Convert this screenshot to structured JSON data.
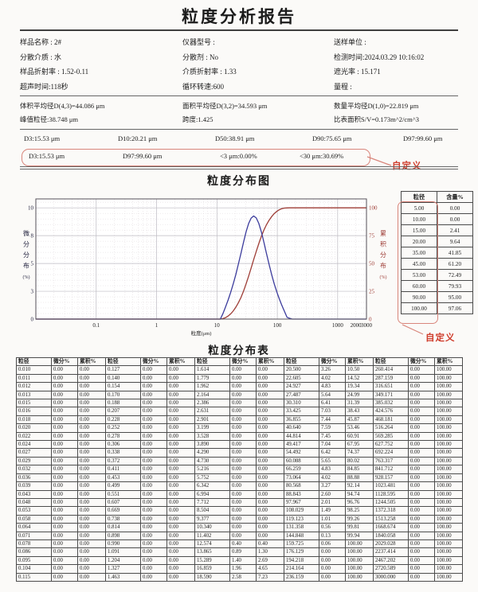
{
  "report": {
    "title": "粒度分析报告",
    "info_rows": [
      [
        "样品名称 : 2#",
        "仪器型号 :",
        "送样单位 :"
      ],
      [
        "分散介质 : 水",
        "分散剂 : No",
        "检测时间:2024.03.29 10:16:02"
      ],
      [
        "样品折射率 : 1.52-0.11",
        "介质折射率 : 1.33",
        "遮光率 : 15.171"
      ],
      [
        "超声时间:118秒",
        "循环转速:600",
        "量程 :"
      ]
    ],
    "summary_rows": [
      [
        "体积平均径D(4,3)=44.086 μm",
        "面积平均径D(3,2)=34.593 μm",
        "数量平均径D(1,0)=22.819 μm"
      ],
      [
        "峰值粒径:38.748 μm",
        "跨度:1.425",
        "比表面积S/V=0.173m^2/cm^3"
      ]
    ],
    "percentiles": [
      "D3:15.53 μm",
      "D10:20.21 μm",
      "D50:38.91 μm",
      "D90:75.65 μm",
      "D97:99.60 μm"
    ],
    "custom_row": {
      "items": [
        "D3:15.53 μm",
        "D97:99.60 μm",
        "<3 μm:0.00%",
        "<30 μm:30.69%"
      ],
      "annotation": "自定义"
    },
    "accent_color": "#cf3b2a"
  },
  "chart_data": {
    "type": "line",
    "title": "粒度分布图",
    "xlabel": "粒度(μm)",
    "ylabel_left": "微分分布(%)",
    "ylabel_right": "累积分布(%)",
    "x_scale": "log",
    "xlim": [
      0.01,
      3000
    ],
    "x_ticks": [
      0.1,
      1,
      10,
      100,
      1000,
      2000,
      3000
    ],
    "ylim_left": [
      0,
      10
    ],
    "y_ticks_left_values": [
      0,
      2.5,
      5,
      7.5,
      10
    ],
    "y_ticks_left_labels": [
      "0",
      "3",
      "5",
      "8",
      "10"
    ],
    "ylim_right": [
      0,
      100
    ],
    "y_ticks_right": [
      0,
      25,
      50,
      75,
      100
    ],
    "grid": true,
    "legend_position": "none",
    "series": [
      {
        "name": "微分分布",
        "color": "#3b3b9c",
        "axis": "left",
        "x": [
          0.01,
          10.34,
          11.402,
          12.574,
          13.865,
          15.289,
          16.859,
          18.59,
          20.5,
          22.605,
          24.927,
          27.487,
          30.31,
          33.425,
          36.855,
          40.64,
          44.814,
          49.417,
          54.492,
          60.088,
          66.259,
          73.064,
          80.568,
          88.843,
          97.967,
          108.029,
          119.123,
          131.358,
          144.848,
          159.725,
          176.129,
          3000
        ],
        "y": [
          0,
          0,
          0,
          0.4,
          0.89,
          1.4,
          1.96,
          2.58,
          3.26,
          4.02,
          4.83,
          5.64,
          6.41,
          7.03,
          7.44,
          7.59,
          7.45,
          7.04,
          6.42,
          5.65,
          4.83,
          4.02,
          3.27,
          2.6,
          2.01,
          1.49,
          1.01,
          0.56,
          0.13,
          0.06,
          0,
          0
        ]
      },
      {
        "name": "累积分布",
        "color": "#9e3d36",
        "axis": "right",
        "x": [
          0.01,
          11.402,
          12.574,
          13.865,
          15.289,
          16.859,
          18.59,
          20.5,
          22.605,
          24.927,
          27.487,
          30.31,
          33.425,
          36.855,
          40.64,
          44.814,
          49.417,
          54.492,
          60.088,
          66.259,
          73.064,
          80.568,
          88.843,
          97.967,
          108.029,
          119.123,
          131.358,
          144.848,
          159.725,
          3000
        ],
        "y": [
          0,
          0,
          0.4,
          1.3,
          2.69,
          4.65,
          7.23,
          10.5,
          14.52,
          19.34,
          24.99,
          31.39,
          38.43,
          45.87,
          53.46,
          60.91,
          67.95,
          74.37,
          80.02,
          84.85,
          88.88,
          92.14,
          94.74,
          96.76,
          98.25,
          99.26,
          99.81,
          99.94,
          100.0,
          100.0
        ]
      }
    ]
  },
  "side_table": {
    "headers": [
      "粒径",
      "含量%"
    ],
    "rows": [
      [
        "5.00",
        "0.00"
      ],
      [
        "10.00",
        "0.00"
      ],
      [
        "15.00",
        "2.41"
      ],
      [
        "20.00",
        "9.64"
      ],
      [
        "35.00",
        "41.85"
      ],
      [
        "45.00",
        "61.20"
      ],
      [
        "53.00",
        "72.49"
      ],
      [
        "60.00",
        "79.93"
      ],
      [
        "90.00",
        "95.00"
      ],
      [
        "100.00",
        "97.06"
      ]
    ],
    "annotation": "自定义"
  },
  "distribution_table": {
    "title": "粒度分布表",
    "header": [
      "粒径",
      "微分%",
      "累积%",
      "粒径",
      "微分%",
      "累积%",
      "粒径",
      "微分%",
      "累积%",
      "粒径",
      "微分%",
      "累积%",
      "粒径",
      "微分%",
      "累积%"
    ],
    "rows": [
      [
        "0.010",
        "0.00",
        "0.00",
        "0.127",
        "0.00",
        "0.00",
        "1.614",
        "0.00",
        "0.00",
        "20.500",
        "3.26",
        "10.50",
        "260.414",
        "0.00",
        "100.00"
      ],
      [
        "0.011",
        "0.00",
        "0.00",
        "0.140",
        "0.00",
        "0.00",
        "1.779",
        "0.00",
        "0.00",
        "22.605",
        "4.02",
        "14.52",
        "287.159",
        "0.00",
        "100.00"
      ],
      [
        "0.012",
        "0.00",
        "0.00",
        "0.154",
        "0.00",
        "0.00",
        "1.962",
        "0.00",
        "0.00",
        "24.927",
        "4.83",
        "19.34",
        "316.651",
        "0.00",
        "100.00"
      ],
      [
        "0.013",
        "0.00",
        "0.00",
        "0.170",
        "0.00",
        "0.00",
        "2.164",
        "0.00",
        "0.00",
        "27.487",
        "5.64",
        "24.99",
        "349.171",
        "0.00",
        "100.00"
      ],
      [
        "0.015",
        "0.00",
        "0.00",
        "0.188",
        "0.00",
        "0.00",
        "2.386",
        "0.00",
        "0.00",
        "30.310",
        "6.41",
        "31.39",
        "385.032",
        "0.00",
        "100.00"
      ],
      [
        "0.016",
        "0.00",
        "0.00",
        "0.207",
        "0.00",
        "0.00",
        "2.631",
        "0.00",
        "0.00",
        "33.425",
        "7.03",
        "38.43",
        "424.576",
        "0.00",
        "100.00"
      ],
      [
        "0.018",
        "0.00",
        "0.00",
        "0.228",
        "0.00",
        "0.00",
        "2.901",
        "0.00",
        "0.00",
        "36.855",
        "7.44",
        "45.87",
        "468.181",
        "0.00",
        "100.00"
      ],
      [
        "0.020",
        "0.00",
        "0.00",
        "0.252",
        "0.00",
        "0.00",
        "3.199",
        "0.00",
        "0.00",
        "40.640",
        "7.59",
        "53.46",
        "516.264",
        "0.00",
        "100.00"
      ],
      [
        "0.022",
        "0.00",
        "0.00",
        "0.278",
        "0.00",
        "0.00",
        "3.528",
        "0.00",
        "0.00",
        "44.814",
        "7.45",
        "60.91",
        "569.285",
        "0.00",
        "100.00"
      ],
      [
        "0.024",
        "0.00",
        "0.00",
        "0.306",
        "0.00",
        "0.00",
        "3.890",
        "0.00",
        "0.00",
        "49.417",
        "7.04",
        "67.95",
        "627.752",
        "0.00",
        "100.00"
      ],
      [
        "0.027",
        "0.00",
        "0.00",
        "0.338",
        "0.00",
        "0.00",
        "4.290",
        "0.00",
        "0.00",
        "54.492",
        "6.42",
        "74.37",
        "692.224",
        "0.00",
        "100.00"
      ],
      [
        "0.029",
        "0.00",
        "0.00",
        "0.372",
        "0.00",
        "0.00",
        "4.730",
        "0.00",
        "0.00",
        "60.088",
        "5.65",
        "80.02",
        "763.317",
        "0.00",
        "100.00"
      ],
      [
        "0.032",
        "0.00",
        "0.00",
        "0.411",
        "0.00",
        "0.00",
        "5.216",
        "0.00",
        "0.00",
        "66.259",
        "4.83",
        "84.85",
        "841.712",
        "0.00",
        "100.00"
      ],
      [
        "0.036",
        "0.00",
        "0.00",
        "0.453",
        "0.00",
        "0.00",
        "5.752",
        "0.00",
        "0.00",
        "73.064",
        "4.02",
        "88.88",
        "928.157",
        "0.00",
        "100.00"
      ],
      [
        "0.039",
        "0.00",
        "0.00",
        "0.499",
        "0.00",
        "0.00",
        "6.342",
        "0.00",
        "0.00",
        "80.568",
        "3.27",
        "92.14",
        "1023.481",
        "0.00",
        "100.00"
      ],
      [
        "0.043",
        "0.00",
        "0.00",
        "0.551",
        "0.00",
        "0.00",
        "6.994",
        "0.00",
        "0.00",
        "88.843",
        "2.60",
        "94.74",
        "1128.595",
        "0.00",
        "100.00"
      ],
      [
        "0.048",
        "0.00",
        "0.00",
        "0.607",
        "0.00",
        "0.00",
        "7.712",
        "0.00",
        "0.00",
        "97.967",
        "2.01",
        "96.76",
        "1244.505",
        "0.00",
        "100.00"
      ],
      [
        "0.053",
        "0.00",
        "0.00",
        "0.669",
        "0.00",
        "0.00",
        "8.504",
        "0.00",
        "0.00",
        "108.029",
        "1.49",
        "98.25",
        "1372.318",
        "0.00",
        "100.00"
      ],
      [
        "0.058",
        "0.00",
        "0.00",
        "0.738",
        "0.00",
        "0.00",
        "9.377",
        "0.00",
        "0.00",
        "119.123",
        "1.01",
        "99.26",
        "1513.258",
        "0.00",
        "100.00"
      ],
      [
        "0.064",
        "0.00",
        "0.00",
        "0.814",
        "0.00",
        "0.00",
        "10.340",
        "0.00",
        "0.00",
        "131.358",
        "0.56",
        "99.81",
        "1668.674",
        "0.00",
        "100.00"
      ],
      [
        "0.071",
        "0.00",
        "0.00",
        "0.898",
        "0.00",
        "0.00",
        "11.402",
        "0.00",
        "0.00",
        "144.848",
        "0.13",
        "99.94",
        "1840.058",
        "0.00",
        "100.00"
      ],
      [
        "0.078",
        "0.00",
        "0.00",
        "0.990",
        "0.00",
        "0.00",
        "12.574",
        "0.40",
        "0.40",
        "159.725",
        "0.06",
        "100.00",
        "2029.028",
        "0.00",
        "100.00"
      ],
      [
        "0.086",
        "0.00",
        "0.00",
        "1.091",
        "0.00",
        "0.00",
        "13.865",
        "0.89",
        "1.30",
        "176.129",
        "0.00",
        "100.00",
        "2237.414",
        "0.00",
        "100.00"
      ],
      [
        "0.095",
        "0.00",
        "0.00",
        "1.204",
        "0.00",
        "0.00",
        "15.289",
        "1.40",
        "2.69",
        "194.218",
        "0.00",
        "100.00",
        "2467.202",
        "0.00",
        "100.00"
      ],
      [
        "0.104",
        "0.00",
        "0.00",
        "1.327",
        "0.00",
        "0.00",
        "16.859",
        "1.96",
        "4.65",
        "214.164",
        "0.00",
        "100.00",
        "2720.589",
        "0.00",
        "100.00"
      ],
      [
        "0.115",
        "0.00",
        "0.00",
        "1.463",
        "0.00",
        "0.00",
        "18.590",
        "2.58",
        "7.23",
        "236.159",
        "0.00",
        "100.00",
        "3000.000",
        "0.00",
        "100.00"
      ]
    ]
  }
}
